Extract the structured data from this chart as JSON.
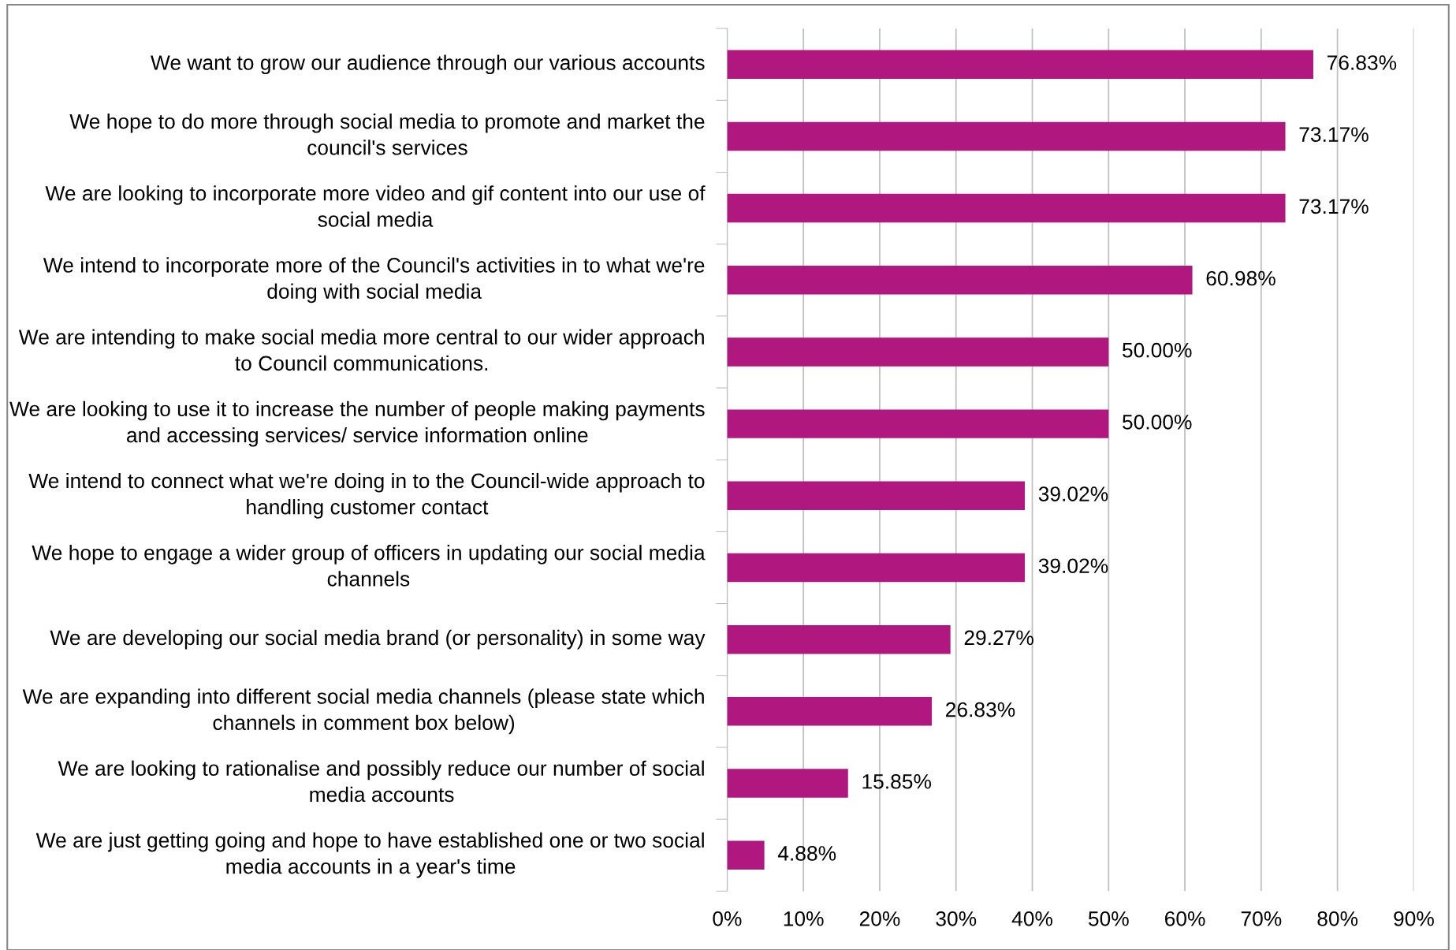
{
  "chart_data": {
    "type": "bar",
    "orientation": "horizontal",
    "categories": [
      "We want to grow our audience through our various accounts",
      "We hope to do more through social media to promote and market the council's services",
      "We are looking to incorporate more video and gif content into our use of social media",
      "We intend to incorporate more of the Council's activities in to what we're doing with social media",
      "We are intending to make social media more central to our wider approach to Council communications.",
      "We are looking to use it to increase the number of people making payments and accessing services/ service information online",
      "We intend to connect what we're doing in to the Council-wide approach to handling customer contact",
      "We hope to engage a wider group of officers in updating our social media channels",
      "We are developing our social media brand (or personality) in some way",
      "We are expanding into different social media channels (please state which channels in comment box below)",
      "We are looking to rationalise and possibly reduce our number of social media accounts",
      "We are just getting going and hope to have established one or two social media accounts in a year's time"
    ],
    "values": [
      76.83,
      73.17,
      73.17,
      60.98,
      50.0,
      50.0,
      39.02,
      39.02,
      29.27,
      26.83,
      15.85,
      4.88
    ],
    "value_labels": [
      "76.83%",
      "73.17%",
      "73.17%",
      "60.98%",
      "50.00%",
      "50.00%",
      "39.02%",
      "39.02%",
      "29.27%",
      "26.83%",
      "15.85%",
      "4.88%"
    ],
    "color": "#b0177f",
    "xlim": [
      0,
      90
    ],
    "xticks": [
      {
        "value": 0,
        "label": "0%"
      },
      {
        "value": 10,
        "label": "10%"
      },
      {
        "value": 20,
        "label": "20%"
      },
      {
        "value": 30,
        "label": "30%"
      },
      {
        "value": 40,
        "label": "40%"
      },
      {
        "value": 50,
        "label": "50%"
      },
      {
        "value": 60,
        "label": "60%"
      },
      {
        "value": 70,
        "label": "70%"
      },
      {
        "value": 80,
        "label": "80%"
      },
      {
        "value": 90,
        "label": "90%"
      }
    ],
    "grid": "x",
    "legend": false
  }
}
